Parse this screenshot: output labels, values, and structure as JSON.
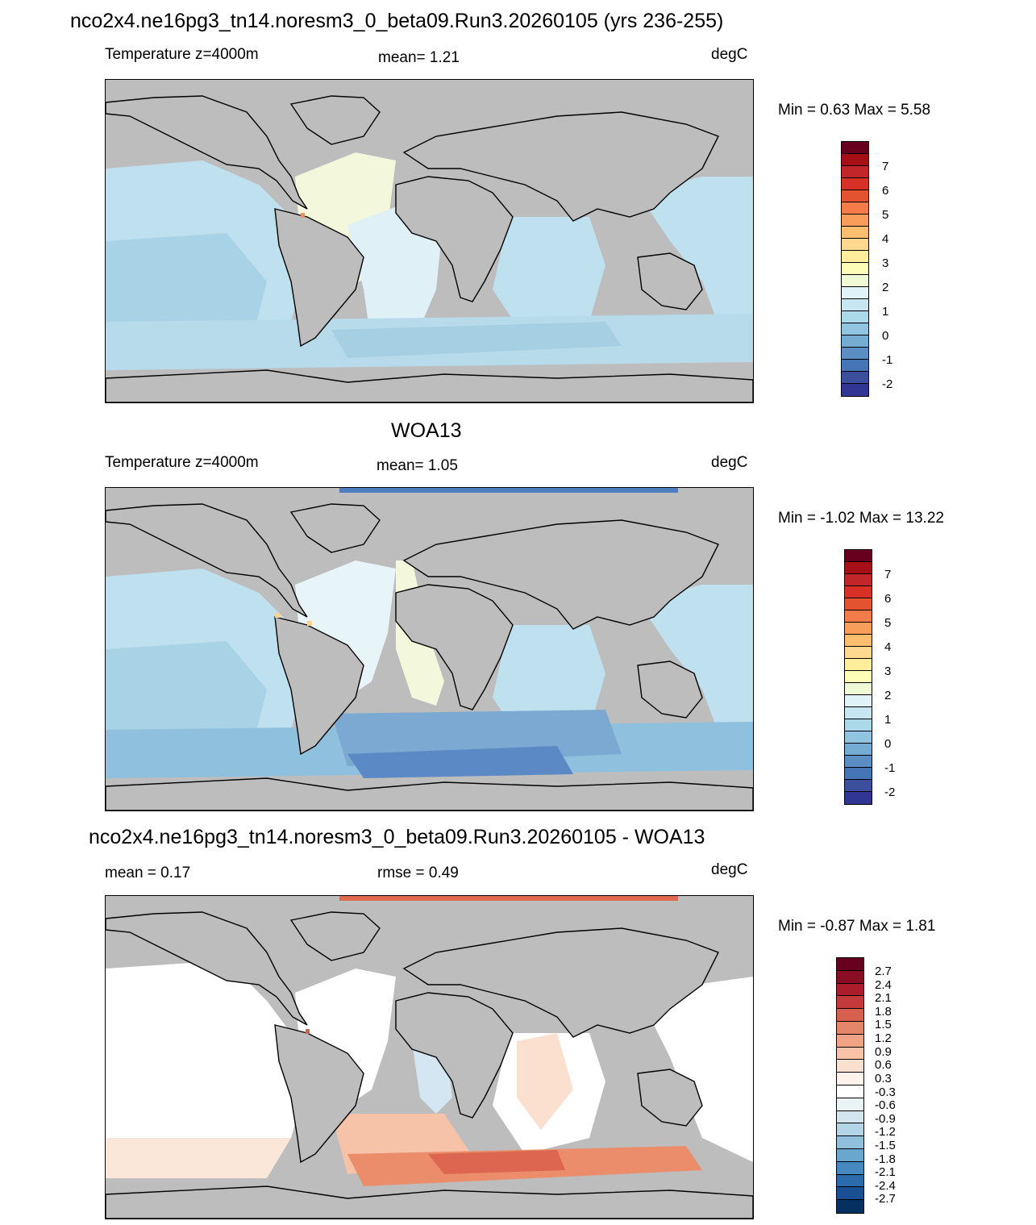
{
  "panels": [
    {
      "title": "nco2x4.ne16pg3_tn14.noresm3_0_beta09.Run3.20260105 (yrs 236-255)",
      "left_label": "Temperature z=4000m",
      "center_label": "mean=   1.21",
      "units": "degC",
      "minmax": "Min =   0.63 Max =   5.58",
      "colorbar": {
        "labels": [
          "7",
          "6",
          "5",
          "4",
          "3",
          "2",
          "1",
          "0",
          "-1",
          "-2"
        ],
        "colors": [
          "#67001f",
          "#a50f15",
          "#c0262a",
          "#d73027",
          "#e4532f",
          "#f47c4a",
          "#f89e5a",
          "#fdbe6f",
          "#fed88f",
          "#feee9b",
          "#fefdb7",
          "#eff9d6",
          "#e0f3f8",
          "#c6e6f1",
          "#abd9e9",
          "#91c4e0",
          "#74add1",
          "#5b8ec5",
          "#4575b4",
          "#3b4f9c",
          "#313695"
        ]
      }
    },
    {
      "title": "WOA13",
      "left_label": "Temperature z=4000m",
      "center_label": "mean=   1.05",
      "units": "degC",
      "minmax": "Min =  -1.02 Max =  13.22",
      "colorbar": {
        "labels": [
          "7",
          "6",
          "5",
          "4",
          "3",
          "2",
          "1",
          "0",
          "-1",
          "-2"
        ],
        "colors": [
          "#67001f",
          "#a50f15",
          "#c0262a",
          "#d73027",
          "#e4532f",
          "#f47c4a",
          "#f89e5a",
          "#fdbe6f",
          "#fed88f",
          "#feee9b",
          "#fefdb7",
          "#eff9d6",
          "#e0f3f8",
          "#c6e6f1",
          "#abd9e9",
          "#91c4e0",
          "#74add1",
          "#5b8ec5",
          "#4575b4",
          "#3b4f9c",
          "#313695"
        ]
      }
    },
    {
      "title": "nco2x4.ne16pg3_tn14.noresm3_0_beta09.Run3.20260105 - WOA13",
      "left_label": "mean =   0.17",
      "center_label": "rmse =   0.49",
      "units": "degC",
      "minmax": "Min =  -0.87 Max =   1.81",
      "colorbar": {
        "labels": [
          "2.7",
          "2.4",
          "2.1",
          "1.8",
          "1.5",
          "1.2",
          "0.9",
          "0.6",
          "0.3",
          "-0.3",
          "-0.6",
          "-0.9",
          "-1.2",
          "-1.5",
          "-1.8",
          "-2.1",
          "-2.4",
          "-2.7"
        ],
        "colors": [
          "#67001f",
          "#8b0d24",
          "#ab1d2d",
          "#c43a3a",
          "#d6604d",
          "#e48468",
          "#f2a385",
          "#f8c3a8",
          "#fbdfcf",
          "#fff3ec",
          "#ffffff",
          "#eaf3f8",
          "#d3e6f0",
          "#b4d5e7",
          "#90c0dc",
          "#6aa7cf",
          "#4589c0",
          "#2b6aad",
          "#1b4f93",
          "#053061"
        ]
      }
    }
  ],
  "colors": {
    "land": "#bdbdbd",
    "coast": "#000000"
  }
}
